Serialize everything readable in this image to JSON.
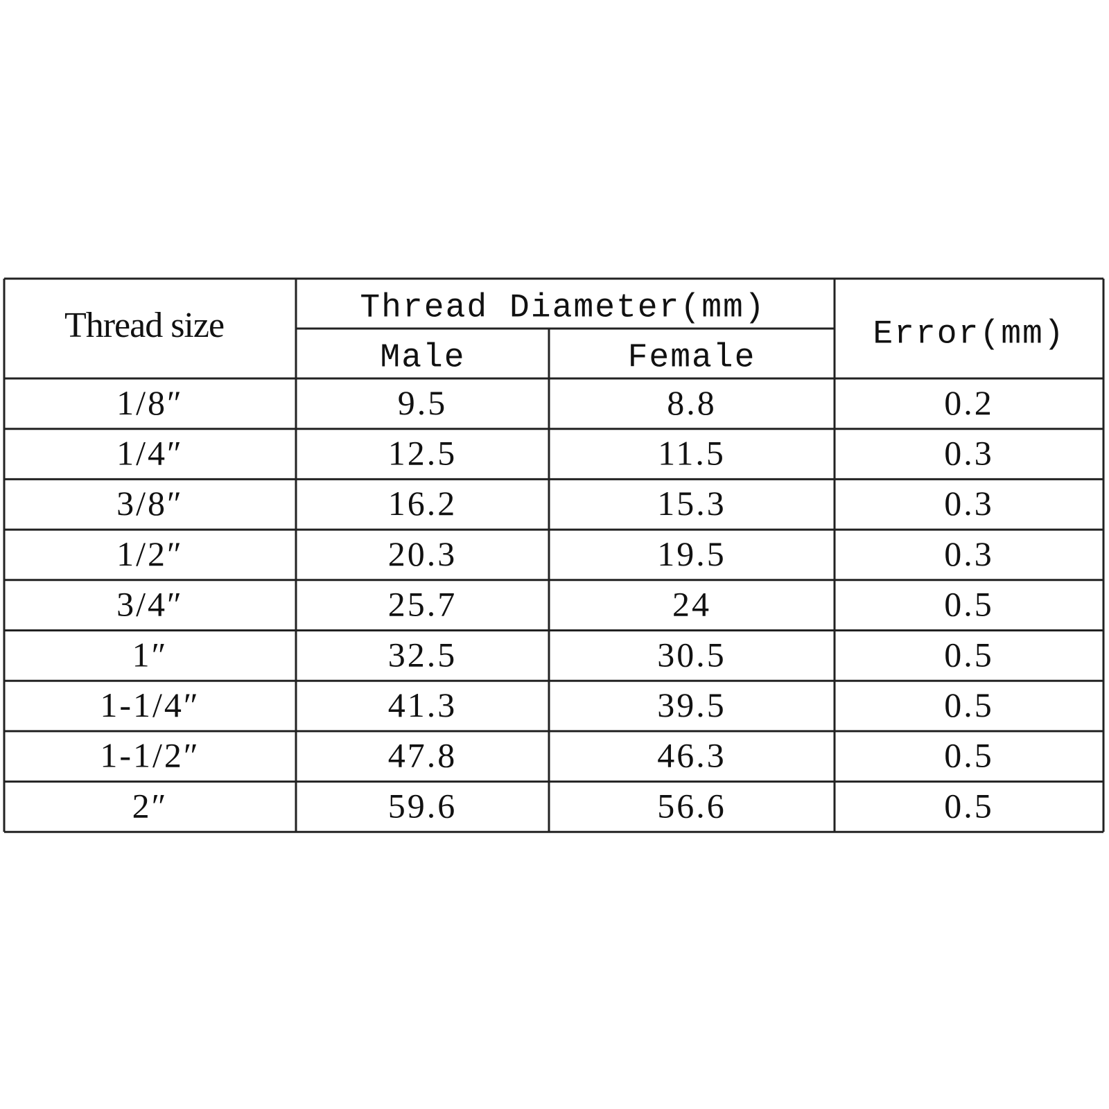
{
  "header": {
    "thread_size": "Thread size",
    "diameter": "Thread Diameter(mm)",
    "male": "Male",
    "female": "Female",
    "error": "Error(mm)"
  },
  "table": {
    "rows": [
      [
        "1/8″",
        9.5,
        8.8,
        0.2
      ],
      [
        "1/4″",
        12.5,
        11.5,
        0.3
      ],
      [
        "3/8″",
        16.2,
        15.3,
        0.3
      ],
      [
        "1/2″",
        20.3,
        19.5,
        0.3
      ],
      [
        "3/4″",
        25.7,
        24,
        0.5
      ],
      [
        "1″",
        32.5,
        30.5,
        0.5
      ],
      [
        "1-1/4″",
        41.3,
        39.5,
        0.5
      ],
      [
        "1-1/2″",
        47.8,
        46.3,
        0.5
      ],
      [
        "2″",
        59.6,
        56.6,
        0.5
      ]
    ]
  }
}
